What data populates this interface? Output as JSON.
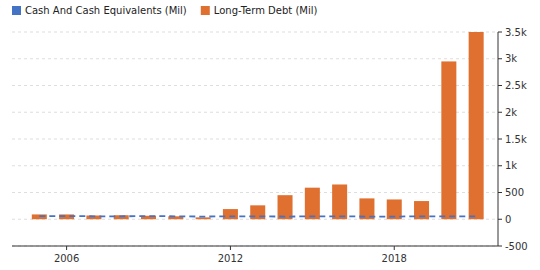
{
  "chart_data": {
    "type": "bar",
    "x": [
      2005,
      2006,
      2007,
      2008,
      2009,
      2010,
      2011,
      2012,
      2013,
      2014,
      2015,
      2016,
      2017,
      2018,
      2019,
      2020,
      2021
    ],
    "series": [
      {
        "name": "Cash And Cash Equivalents (Mil)",
        "type": "line",
        "line_style": "dashed",
        "color": "#4472c4",
        "values": [
          60,
          60,
          55,
          55,
          60,
          55,
          50,
          55,
          55,
          50,
          55,
          55,
          50,
          50,
          55,
          55,
          55
        ]
      },
      {
        "name": "Long-Term Debt (Mil)",
        "type": "bar",
        "color": "#e07030",
        "values": [
          90,
          90,
          70,
          75,
          65,
          55,
          35,
          190,
          260,
          450,
          590,
          650,
          390,
          370,
          340,
          2950,
          3500
        ]
      }
    ],
    "xlim": [
      2004,
      2021.8
    ],
    "xticks": [
      2006,
      2012,
      2018
    ],
    "ylim": [
      -500,
      3500
    ],
    "yticks": [
      -500,
      0,
      500,
      {
        "value": 1000,
        "label": "1k"
      },
      {
        "value": 1500,
        "label": "1.5k"
      },
      {
        "value": 2000,
        "label": "2k"
      },
      {
        "value": 2500,
        "label": "2.5k"
      },
      {
        "value": 3000,
        "label": "3k"
      },
      {
        "value": 3500,
        "label": "3.5k"
      }
    ],
    "grid": true,
    "legend": "upper left"
  }
}
